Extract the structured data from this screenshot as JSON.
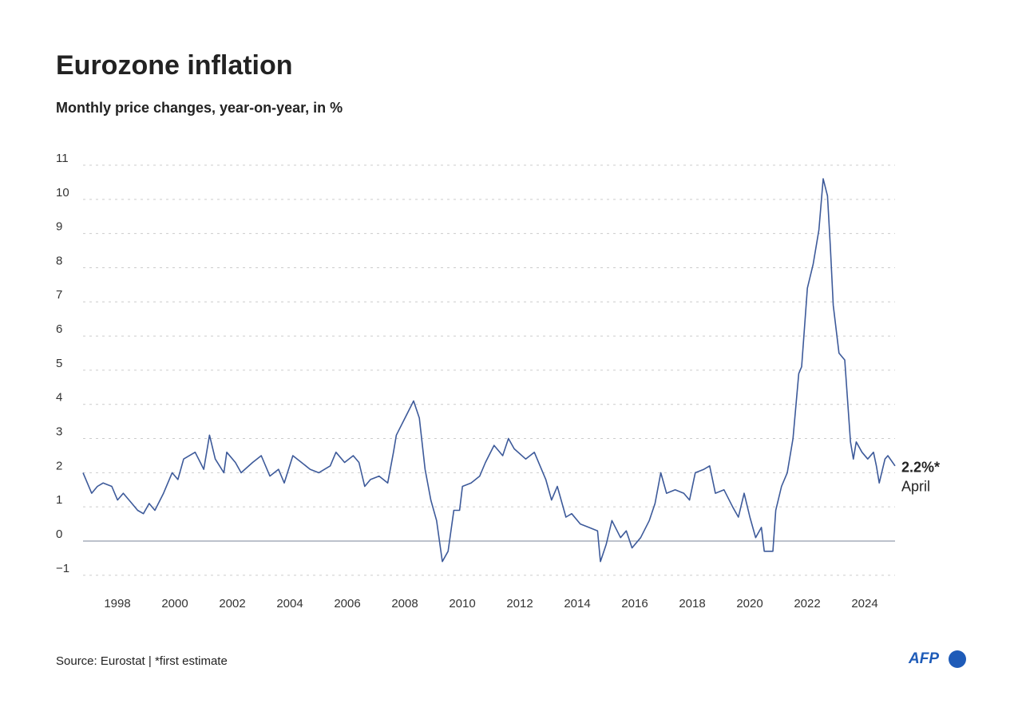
{
  "chart_data": {
    "type": "line",
    "title": "Eurozone inflation",
    "subtitle": "Monthly price changes, year-on-year, in %",
    "source": "Source: Eurostat | *first estimate",
    "logo": "AFP",
    "annotations": [
      "2.2%*",
      "April"
    ],
    "color": "#3d5a9a",
    "grid": true,
    "x": [
      1997.0,
      1997.3,
      1997.5,
      1997.7,
      1998.0,
      1998.2,
      1998.4,
      1998.7,
      1998.9,
      1999.1,
      1999.3,
      1999.5,
      1999.8,
      2000.1,
      2000.3,
      2000.5,
      2000.9,
      2001.2,
      2001.4,
      2001.6,
      2001.9,
      2002.0,
      2002.3,
      2002.5,
      2002.9,
      2003.2,
      2003.5,
      2003.8,
      2004.0,
      2004.3,
      2004.6,
      2004.9,
      2005.2,
      2005.6,
      2005.8,
      2006.1,
      2006.4,
      2006.6,
      2006.8,
      2007.0,
      2007.3,
      2007.6,
      2007.8,
      2007.9,
      2008.2,
      2008.5,
      2008.7,
      2008.9,
      2009.1,
      2009.3,
      2009.5,
      2009.7,
      2009.9,
      2010.1,
      2010.2,
      2010.5,
      2010.8,
      2011.0,
      2011.3,
      2011.6,
      2011.8,
      2012.0,
      2012.4,
      2012.7,
      2012.9,
      2013.1,
      2013.3,
      2013.5,
      2013.8,
      2014.0,
      2014.3,
      2014.6,
      2014.9,
      2015.0,
      2015.2,
      2015.4,
      2015.7,
      2015.9,
      2016.1,
      2016.4,
      2016.7,
      2016.9,
      2017.1,
      2017.3,
      2017.6,
      2017.9,
      2018.1,
      2018.3,
      2018.6,
      2018.8,
      2019.0,
      2019.3,
      2019.6,
      2019.8,
      2020.0,
      2020.2,
      2020.4,
      2020.6,
      2020.7,
      2021.0,
      2021.1,
      2021.3,
      2021.5,
      2021.7,
      2021.9,
      2022.0,
      2022.2,
      2022.4,
      2022.6,
      2022.75,
      2022.9,
      2023.0,
      2023.1,
      2023.3,
      2023.5,
      2023.7,
      2023.8,
      2023.9,
      2024.1,
      2024.3,
      2024.5,
      2024.6,
      2024.7,
      2024.9,
      2025.0,
      2025.25
    ],
    "values": [
      2.0,
      1.4,
      1.6,
      1.7,
      1.6,
      1.2,
      1.4,
      1.1,
      0.9,
      0.8,
      1.1,
      0.9,
      1.4,
      2.0,
      1.8,
      2.4,
      2.6,
      2.1,
      3.1,
      2.4,
      2.0,
      2.6,
      2.3,
      2.0,
      2.3,
      2.5,
      1.9,
      2.1,
      1.7,
      2.5,
      2.3,
      2.1,
      2.0,
      2.2,
      2.6,
      2.3,
      2.5,
      2.3,
      1.6,
      1.8,
      1.9,
      1.7,
      2.6,
      3.1,
      3.6,
      4.1,
      3.6,
      2.1,
      1.2,
      0.6,
      -0.6,
      -0.3,
      0.9,
      0.9,
      1.6,
      1.7,
      1.9,
      2.3,
      2.8,
      2.5,
      3.0,
      2.7,
      2.4,
      2.6,
      2.2,
      1.8,
      1.2,
      1.6,
      0.7,
      0.8,
      0.5,
      0.4,
      0.3,
      -0.6,
      -0.1,
      0.6,
      0.1,
      0.3,
      -0.2,
      0.1,
      0.6,
      1.1,
      2.0,
      1.4,
      1.5,
      1.4,
      1.2,
      2.0,
      2.1,
      2.2,
      1.4,
      1.5,
      1.0,
      0.7,
      1.4,
      0.7,
      0.1,
      0.4,
      -0.3,
      -0.3,
      0.9,
      1.6,
      2.0,
      3.0,
      4.9,
      5.1,
      7.4,
      8.1,
      9.1,
      10.6,
      10.1,
      8.6,
      6.9,
      5.5,
      5.3,
      2.9,
      2.4,
      2.9,
      2.6,
      2.4,
      2.6,
      2.2,
      1.7,
      2.4,
      2.5,
      2.2
    ],
    "xlim": [
      1997,
      2025.25
    ],
    "xticks": [
      1998,
      2000,
      2002,
      2004,
      2006,
      2008,
      2010,
      2012,
      2014,
      2016,
      2018,
      2020,
      2022,
      2024
    ],
    "ylim": [
      -1.2,
      11.2
    ],
    "yticks": [
      {
        "value": -1,
        "label": "−1"
      },
      0,
      1,
      2,
      3,
      4,
      5,
      6,
      7,
      8,
      9,
      10,
      11
    ]
  }
}
